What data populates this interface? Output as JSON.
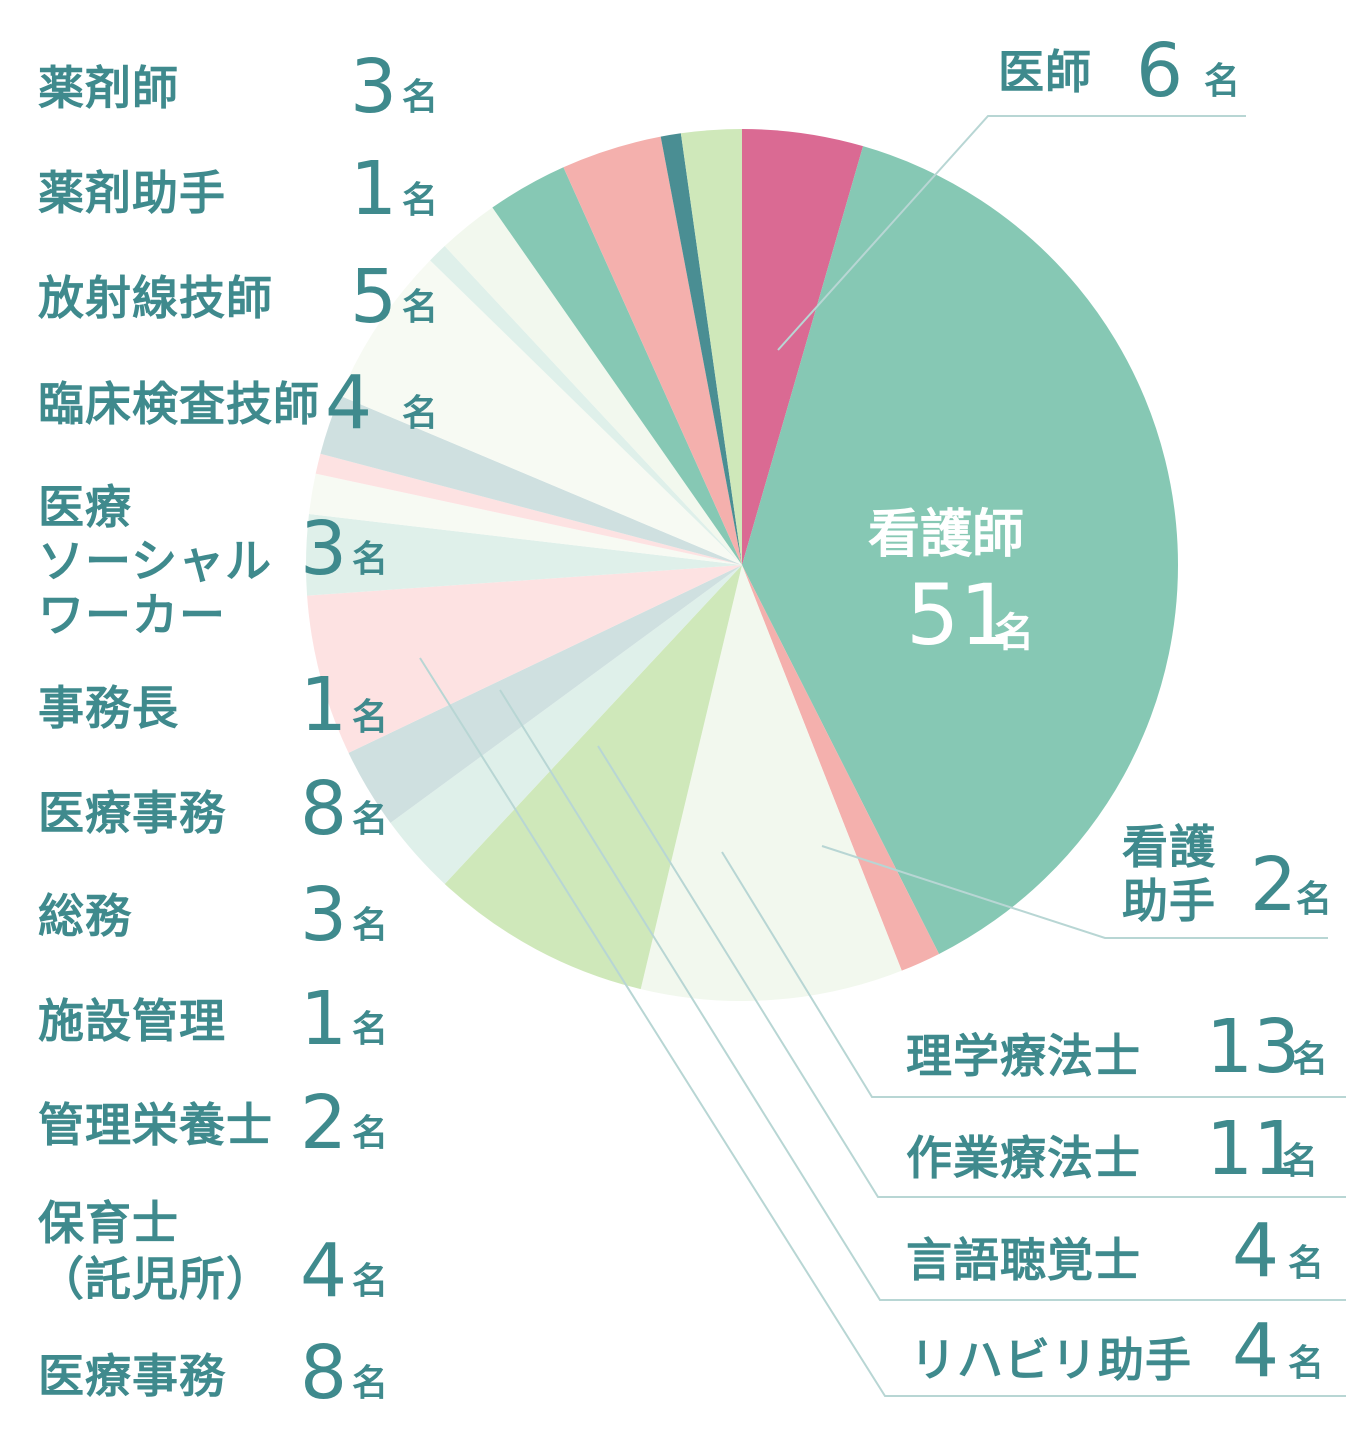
{
  "chart_data": {
    "type": "pie",
    "colors": {
      "text": "#3f8a8d",
      "leader_line": "#b8d6d4",
      "doctor": "#da6a93",
      "nurse": "#86c8b4",
      "pink": "#f4b0ad",
      "dark_teal": "#4a8e93",
      "light_green": "#cfe8ba",
      "pale_green": "#f2f8ee",
      "pale_blue": "#cfe0e0",
      "pale_mint": "#dff0ea",
      "pale_pink": "#fde2e2",
      "off_white": "#f7faf3"
    },
    "slices": [
      {
        "label": "医師",
        "value": 6,
        "color": "#da6a93"
      },
      {
        "label": "看護師",
        "value": 51,
        "color": "#86c8b4"
      },
      {
        "label": "看護助手",
        "value": 2,
        "color": "#f4b0ad"
      },
      {
        "label": "理学療法士",
        "value": 13,
        "color": "#f2f8ee"
      },
      {
        "label": "作業療法士",
        "value": 11,
        "color": "#cfe8ba"
      },
      {
        "label": "言語聴覚士",
        "value": 4,
        "color": "#dff0ea"
      },
      {
        "label": "リハビリ助手",
        "value": 4,
        "color": "#cfe0e0"
      },
      {
        "label": "医療事務",
        "value": 8,
        "color": "#fde2e2"
      },
      {
        "label": "保育士（託児所）",
        "value": 4,
        "color": "#dff0ea"
      },
      {
        "label": "管理栄養士",
        "value": 2,
        "color": "#f7faf3"
      },
      {
        "label": "施設管理",
        "value": 1,
        "color": "#fde2e2"
      },
      {
        "label": "総務",
        "value": 3,
        "color": "#cfe0e0"
      },
      {
        "label": "医療事務",
        "value": 8,
        "color": "#f7faf3"
      },
      {
        "label": "事務長",
        "value": 1,
        "color": "#dff0ea"
      },
      {
        "label": "医療ソーシャルワーカー",
        "value": 3,
        "color": "#f2f8ee"
      },
      {
        "label": "臨床検査技師",
        "value": 4,
        "color": "#86c8b4"
      },
      {
        "label": "放射線技師",
        "value": 5,
        "color": "#f4b0ad"
      },
      {
        "label": "薬剤助手",
        "value": 1,
        "color": "#4a8e93"
      },
      {
        "label": "薬剤師",
        "value": 3,
        "color": "#cfe8ba"
      }
    ],
    "left_labels": [
      {
        "name": "薬剤師",
        "num": "3",
        "unit": "名"
      },
      {
        "name": "薬剤助手",
        "num": "1",
        "unit": "名"
      },
      {
        "name": "放射線技師",
        "num": "5",
        "unit": "名"
      },
      {
        "name": "臨床検査技師",
        "num": "4",
        "unit": "名"
      },
      {
        "name": "医療\nソーシャル\nワーカー",
        "num": "3",
        "unit": "名"
      },
      {
        "name": "事務長",
        "num": "1",
        "unit": "名"
      },
      {
        "name": "医療事務",
        "num": "8",
        "unit": "名"
      },
      {
        "name": "総務",
        "num": "3",
        "unit": "名"
      },
      {
        "name": "施設管理",
        "num": "1",
        "unit": "名"
      },
      {
        "name": "管理栄養士",
        "num": "2",
        "unit": "名"
      },
      {
        "name": "保育士\n（託児所）",
        "num": "4",
        "unit": "名"
      },
      {
        "name": "医療事務",
        "num": "8",
        "unit": "名"
      }
    ],
    "right_labels": [
      {
        "name": "医師",
        "num": "6",
        "unit": "名"
      },
      {
        "name": "看護\n助手",
        "num": "2",
        "unit": "名"
      },
      {
        "name": "理学療法士",
        "num": "13",
        "unit": "名"
      },
      {
        "name": "作業療法士",
        "num": "11",
        "unit": "名"
      },
      {
        "name": "言語聴覚士",
        "num": "4",
        "unit": "名"
      },
      {
        "name": "リハビリ助手",
        "num": "4",
        "unit": "名"
      }
    ],
    "inner_label": {
      "name": "看護師",
      "num": "51",
      "unit": "名"
    }
  }
}
